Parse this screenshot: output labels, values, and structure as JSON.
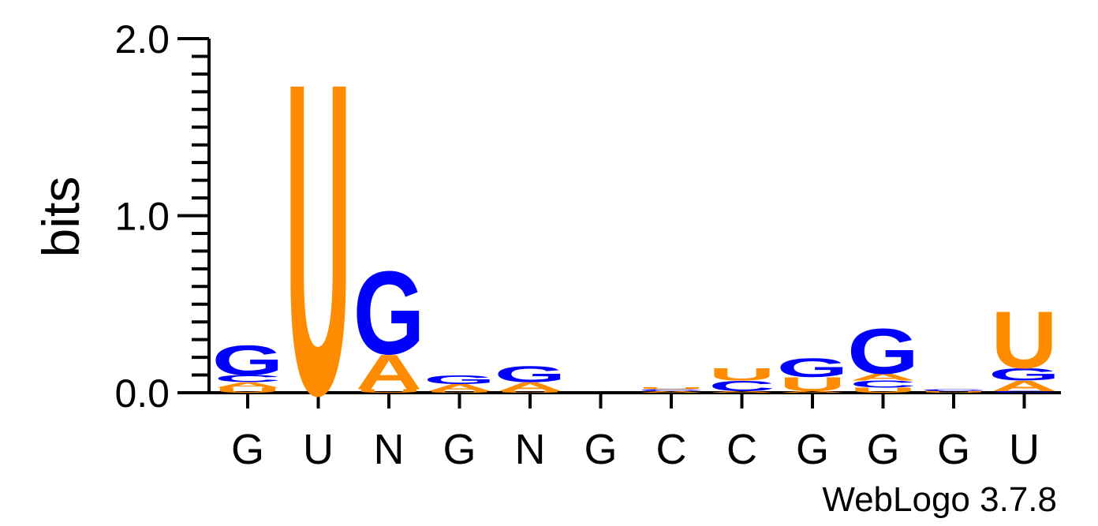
{
  "chart_data": {
    "type": "sequence-logo",
    "ylabel": "bits",
    "ylim": [
      0,
      2
    ],
    "yticks": [
      "0.0",
      "1.0",
      "2.0"
    ],
    "x_labels": [
      "G",
      "U",
      "N",
      "G",
      "N",
      "G",
      "C",
      "C",
      "G",
      "G",
      "G",
      "U"
    ],
    "colors": {
      "A": "#ff8c00",
      "U": "#ff8c00",
      "G": "#0000ff",
      "C": "#0000ff"
    },
    "positions": [
      {
        "stack": [
          {
            "letter": "U",
            "bits": 0.03
          },
          {
            "letter": "A",
            "bits": 0.03
          },
          {
            "letter": "C",
            "bits": 0.04
          },
          {
            "letter": "G",
            "bits": 0.17
          }
        ]
      },
      {
        "stack": [
          {
            "letter": "U",
            "bits": 1.8
          }
        ]
      },
      {
        "stack": [
          {
            "letter": "U",
            "bits": 0.02
          },
          {
            "letter": "A",
            "bits": 0.2
          },
          {
            "letter": "G",
            "bits": 0.48
          }
        ]
      },
      {
        "stack": [
          {
            "letter": "U",
            "bits": 0.01
          },
          {
            "letter": "A",
            "bits": 0.04
          },
          {
            "letter": "G",
            "bits": 0.05
          }
        ]
      },
      {
        "stack": [
          {
            "letter": "U",
            "bits": 0.01
          },
          {
            "letter": "A",
            "bits": 0.05
          },
          {
            "letter": "G",
            "bits": 0.09
          }
        ]
      },
      {
        "stack": []
      },
      {
        "stack": [
          {
            "letter": "A",
            "bits": 0.01
          },
          {
            "letter": "C",
            "bits": 0.01
          },
          {
            "letter": "U",
            "bits": 0.01
          }
        ]
      },
      {
        "stack": [
          {
            "letter": "A",
            "bits": 0.01
          },
          {
            "letter": "C",
            "bits": 0.06
          },
          {
            "letter": "U",
            "bits": 0.07
          }
        ]
      },
      {
        "stack": [
          {
            "letter": "A",
            "bits": 0.01
          },
          {
            "letter": "U",
            "bits": 0.08
          },
          {
            "letter": "G",
            "bits": 0.11
          }
        ]
      },
      {
        "stack": [
          {
            "letter": "U",
            "bits": 0.03
          },
          {
            "letter": "C",
            "bits": 0.04
          },
          {
            "letter": "A",
            "bits": 0.04
          },
          {
            "letter": "G",
            "bits": 0.26
          }
        ]
      },
      {
        "stack": [
          {
            "letter": "U",
            "bits": 0.01
          },
          {
            "letter": "C",
            "bits": 0.01
          }
        ]
      },
      {
        "stack": [
          {
            "letter": "C",
            "bits": 0.01
          },
          {
            "letter": "A",
            "bits": 0.06
          },
          {
            "letter": "G",
            "bits": 0.07
          },
          {
            "letter": "U",
            "bits": 0.33
          }
        ]
      }
    ]
  },
  "credit": "WebLogo 3.7.8"
}
